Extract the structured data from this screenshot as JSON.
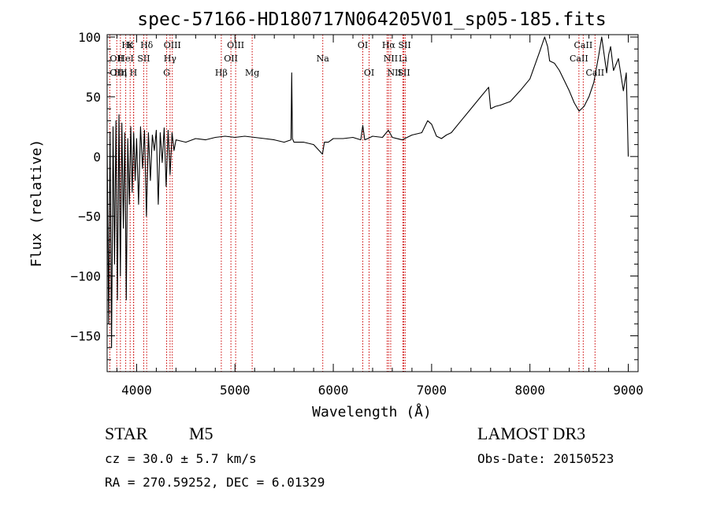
{
  "chart_data": {
    "type": "line",
    "title": "spec-57166-HD180717N064205V01_sp05-185.fits",
    "xlabel": "Wavelength (Å)",
    "ylabel": "Flux (relative)",
    "xlim": [
      3700,
      9100
    ],
    "ylim": [
      -180,
      102
    ],
    "xticks": [
      4000,
      5000,
      6000,
      7000,
      8000,
      9000
    ],
    "yticks": [
      -150,
      -100,
      -50,
      0,
      50,
      100
    ],
    "grid": false,
    "series": [
      {
        "color": "#000000",
        "x": [
          3700,
          3715,
          3730,
          3745,
          3760,
          3775,
          3790,
          3805,
          3820,
          3835,
          3850,
          3865,
          3880,
          3895,
          3910,
          3925,
          3940,
          3955,
          3970,
          3985,
          4000,
          4020,
          4040,
          4060,
          4080,
          4100,
          4120,
          4140,
          4160,
          4180,
          4200,
          4220,
          4240,
          4260,
          4280,
          4300,
          4320,
          4340,
          4360,
          4380,
          4400,
          4500,
          4600,
          4700,
          4800,
          4900,
          5000,
          5100,
          5200,
          5300,
          5400,
          5500,
          5570,
          5577,
          5584,
          5600,
          5700,
          5800,
          5890,
          5910,
          5950,
          6000,
          6100,
          6200,
          6280,
          6300,
          6320,
          6350,
          6400,
          6500,
          6560,
          6600,
          6700,
          6800,
          6900,
          6960,
          7000,
          7050,
          7100,
          7150,
          7200,
          7300,
          7400,
          7500,
          7580,
          7600,
          7650,
          7700,
          7800,
          7900,
          8000,
          8100,
          8150,
          8180,
          8200,
          8250,
          8300,
          8400,
          8450,
          8500,
          8550,
          8600,
          8650,
          8700,
          8730,
          8780,
          8800,
          8820,
          8850,
          8900,
          8950,
          8980,
          9000
        ],
        "values": [
          10,
          -140,
          20,
          -160,
          25,
          -90,
          30,
          -120,
          35,
          -100,
          28,
          -60,
          20,
          -120,
          15,
          -40,
          25,
          -30,
          20,
          -20,
          15,
          -40,
          25,
          -10,
          22,
          -50,
          20,
          -20,
          18,
          5,
          22,
          -40,
          20,
          -5,
          24,
          -25,
          22,
          -15,
          20,
          5,
          14,
          12,
          15,
          14,
          16,
          17,
          16,
          17,
          16,
          15,
          14,
          12,
          14,
          70,
          15,
          12,
          12,
          10,
          2,
          12,
          12,
          15,
          15,
          16,
          14,
          26,
          14,
          15,
          17,
          16,
          22,
          16,
          14,
          18,
          20,
          30,
          27,
          17,
          15,
          18,
          20,
          30,
          40,
          50,
          58,
          40,
          42,
          43,
          46,
          55,
          65,
          88,
          100,
          92,
          80,
          78,
          72,
          55,
          45,
          38,
          42,
          50,
          62,
          85,
          100,
          70,
          85,
          92,
          72,
          82,
          55,
          70,
          0
        ]
      }
    ],
    "annotations": [
      {
        "label": "Hε",
        "x": 3970,
        "row": 1,
        "align": "end"
      },
      {
        "label": "K",
        "x": 3934,
        "row": 1,
        "align": "middle"
      },
      {
        "label": "Hδ",
        "x": 4102,
        "row": 1,
        "align": "middle"
      },
      {
        "label": "OIII",
        "x": 4363,
        "row": 1,
        "align": "middle"
      },
      {
        "label": "OIII",
        "x": 5007,
        "row": 1,
        "align": "middle"
      },
      {
        "label": "OI",
        "x": 6300,
        "row": 1,
        "align": "middle"
      },
      {
        "label": "Hα",
        "x": 6563,
        "row": 1,
        "align": "middle"
      },
      {
        "label": "SII",
        "x": 6725,
        "row": 1,
        "align": "middle"
      },
      {
        "label": "CaII",
        "x": 8542,
        "row": 1,
        "align": "middle"
      },
      {
        "label": "OII",
        "x": 3727,
        "row": 2,
        "align": "start"
      },
      {
        "label": "HeI",
        "x": 3889,
        "row": 2,
        "align": "middle"
      },
      {
        "label": "SII",
        "x": 4072,
        "row": 2,
        "align": "middle"
      },
      {
        "label": "Hγ",
        "x": 4340,
        "row": 2,
        "align": "middle"
      },
      {
        "label": "OII",
        "x": 4959,
        "row": 2,
        "align": "middle"
      },
      {
        "label": "Na",
        "x": 5893,
        "row": 2,
        "align": "middle"
      },
      {
        "label": "NII",
        "x": 6584,
        "row": 2,
        "align": "middle"
      },
      {
        "label": "Li",
        "x": 6708,
        "row": 2,
        "align": "middle"
      },
      {
        "label": "CaII",
        "x": 8498,
        "row": 2,
        "align": "middle"
      },
      {
        "label": "OIII",
        "x": 3727,
        "row": 3,
        "align": "start"
      },
      {
        "label": "Hη",
        "x": 3835,
        "row": 3,
        "align": "middle"
      },
      {
        "label": "H",
        "x": 3968,
        "row": 3,
        "align": "middle"
      },
      {
        "label": "G",
        "x": 4305,
        "row": 3,
        "align": "middle"
      },
      {
        "label": "Hβ",
        "x": 4861,
        "row": 3,
        "align": "middle"
      },
      {
        "label": "Mg",
        "x": 5175,
        "row": 3,
        "align": "middle"
      },
      {
        "label": "OI",
        "x": 6364,
        "row": 3,
        "align": "middle"
      },
      {
        "label": "NII",
        "x": 6548,
        "row": 3,
        "align": "start"
      },
      {
        "label": "SII",
        "x": 6717,
        "row": 3,
        "align": "middle"
      },
      {
        "label": "CaII",
        "x": 8662,
        "row": 3,
        "align": "middle"
      }
    ],
    "line_markers": [
      3727,
      3798,
      3835,
      3889,
      3934,
      3968,
      3970,
      4072,
      4102,
      4305,
      4340,
      4363,
      4861,
      4959,
      5007,
      5175,
      5893,
      6300,
      6364,
      6548,
      6563,
      6584,
      6708,
      6717,
      6731,
      8498,
      8542,
      8662
    ],
    "marker_color": "#cc0000"
  },
  "info": {
    "object_class": "STAR",
    "subclass": "M5",
    "cz": "cz = 30.0 ± 5.7 km/s",
    "coords": "RA = 270.59252, DEC =   6.01329",
    "survey": "LAMOST DR3",
    "obs_date": "Obs-Date: 20150523"
  }
}
